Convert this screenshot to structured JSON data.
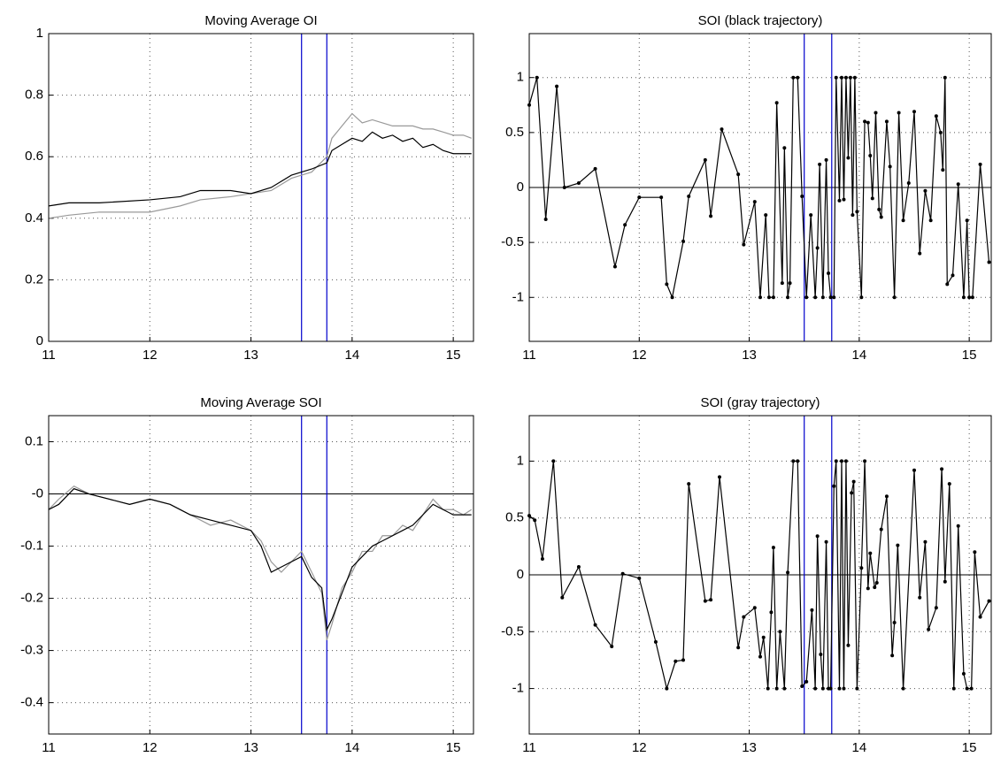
{
  "chart_data": [
    {
      "type": "line",
      "title": "Moving Average OI",
      "x": [
        11,
        11.2,
        11.5,
        12,
        12.3,
        12.5,
        12.8,
        13,
        13.2,
        13.4,
        13.5,
        13.6,
        13.75,
        13.8,
        13.9,
        14,
        14.1,
        14.2,
        14.3,
        14.4,
        14.5,
        14.6,
        14.7,
        14.8,
        14.9,
        15,
        15.1,
        15.18
      ],
      "series": [
        {
          "color": "#999999",
          "values": [
            0.4,
            0.41,
            0.42,
            0.42,
            0.44,
            0.46,
            0.47,
            0.48,
            0.49,
            0.53,
            0.54,
            0.55,
            0.6,
            0.66,
            0.7,
            0.74,
            0.71,
            0.72,
            0.71,
            0.7,
            0.7,
            0.7,
            0.69,
            0.69,
            0.68,
            0.67,
            0.67,
            0.66
          ]
        },
        {
          "color": "#000000",
          "values": [
            0.44,
            0.45,
            0.45,
            0.46,
            0.47,
            0.49,
            0.49,
            0.48,
            0.5,
            0.54,
            0.55,
            0.56,
            0.58,
            0.62,
            0.64,
            0.66,
            0.65,
            0.68,
            0.66,
            0.67,
            0.65,
            0.66,
            0.63,
            0.64,
            0.62,
            0.61,
            0.61,
            0.61
          ]
        }
      ],
      "xlim": [
        11,
        15.2
      ],
      "xticks": [
        11,
        12,
        13,
        14,
        15
      ],
      "ylim": [
        0,
        1
      ],
      "yticks": [
        0,
        0.2,
        0.4,
        0.6,
        0.8,
        1
      ],
      "grid": true,
      "vlines": [
        13.5,
        13.75
      ],
      "vline_color": "#0000cc"
    },
    {
      "type": "line",
      "title": "SOI (black trajectory)",
      "markers": true,
      "x": [
        11,
        11.07,
        11.15,
        11.25,
        11.32,
        11.45,
        11.6,
        11.78,
        11.87,
        12,
        12.2,
        12.25,
        12.3,
        12.4,
        12.45,
        12.6,
        12.65,
        12.75,
        12.9,
        12.95,
        13.05,
        13.1,
        13.15,
        13.18,
        13.22,
        13.25,
        13.3,
        13.32,
        13.35,
        13.37,
        13.4,
        13.44,
        13.48,
        13.52,
        13.56,
        13.6,
        13.62,
        13.64,
        13.67,
        13.7,
        13.72,
        13.74,
        13.77,
        13.79,
        13.82,
        13.84,
        13.86,
        13.88,
        13.9,
        13.92,
        13.94,
        13.96,
        13.98,
        14.02,
        14.05,
        14.08,
        14.1,
        14.12,
        14.15,
        14.18,
        14.2,
        14.25,
        14.28,
        14.32,
        14.36,
        14.4,
        14.45,
        14.5,
        14.55,
        14.6,
        14.65,
        14.7,
        14.74,
        14.76,
        14.78,
        14.8,
        14.85,
        14.9,
        14.95,
        14.98,
        15,
        15.03,
        15.1,
        15.18
      ],
      "series": [
        {
          "color": "#000000",
          "values": [
            0.75,
            1,
            -0.29,
            0.92,
            0,
            0.04,
            0.17,
            -0.72,
            -0.34,
            -0.09,
            -0.09,
            -0.88,
            -1,
            -0.49,
            -0.08,
            0.25,
            -0.26,
            0.53,
            0.12,
            -0.52,
            -0.13,
            -1,
            -0.25,
            -1,
            -1,
            0.77,
            -0.87,
            0.36,
            -1,
            -0.87,
            1,
            1,
            -0.08,
            -1,
            -0.25,
            -1,
            -0.55,
            0.21,
            -1,
            0.25,
            -0.78,
            -1,
            -1,
            1,
            -0.12,
            1,
            -0.11,
            1,
            0.27,
            1,
            -0.25,
            1,
            -0.22,
            -1,
            0.6,
            0.59,
            0.29,
            -0.1,
            0.68,
            -0.2,
            -0.27,
            0.6,
            0.19,
            -1,
            0.68,
            -0.3,
            0.04,
            0.69,
            -0.6,
            -0.03,
            -0.3,
            0.65,
            0.5,
            0.16,
            1,
            -0.88,
            -0.8,
            0.03,
            -1,
            -0.3,
            -1,
            -1,
            0.21,
            -0.68
          ]
        }
      ],
      "xlim": [
        11,
        15.2
      ],
      "xticks": [
        11,
        12,
        13,
        14,
        15
      ],
      "ylim": [
        -1.4,
        1.4
      ],
      "yticks": [
        -1,
        -0.5,
        0,
        0.5,
        1
      ],
      "grid": true,
      "vlines": [
        13.5,
        13.75
      ],
      "vline_color": "#0000cc",
      "hline": 0
    },
    {
      "type": "line",
      "title": "Moving Average SOI",
      "x": [
        11,
        11.1,
        11.25,
        11.4,
        11.6,
        11.8,
        12,
        12.2,
        12.4,
        12.6,
        12.8,
        13,
        13.1,
        13.2,
        13.3,
        13.4,
        13.5,
        13.6,
        13.7,
        13.75,
        13.8,
        13.9,
        14,
        14.1,
        14.2,
        14.3,
        14.4,
        14.5,
        14.6,
        14.7,
        14.8,
        14.9,
        15,
        15.1,
        15.18
      ],
      "series": [
        {
          "color": "#999999",
          "values": [
            -0.03,
            -0.01,
            0.015,
            0.0,
            -0.01,
            -0.02,
            -0.01,
            -0.02,
            -0.04,
            -0.06,
            -0.05,
            -0.07,
            -0.09,
            -0.13,
            -0.15,
            -0.13,
            -0.11,
            -0.15,
            -0.19,
            -0.28,
            -0.25,
            -0.18,
            -0.15,
            -0.11,
            -0.11,
            -0.08,
            -0.08,
            -0.06,
            -0.07,
            -0.04,
            -0.01,
            -0.03,
            -0.03,
            -0.04,
            -0.03
          ]
        },
        {
          "color": "#000000",
          "values": [
            -0.03,
            -0.02,
            0.01,
            0.0,
            -0.01,
            -0.02,
            -0.01,
            -0.02,
            -0.04,
            -0.05,
            -0.06,
            -0.07,
            -0.1,
            -0.15,
            -0.14,
            -0.13,
            -0.12,
            -0.16,
            -0.18,
            -0.26,
            -0.24,
            -0.19,
            -0.14,
            -0.12,
            -0.1,
            -0.09,
            -0.08,
            -0.07,
            -0.06,
            -0.04,
            -0.02,
            -0.03,
            -0.04,
            -0.04,
            -0.04
          ]
        }
      ],
      "xlim": [
        11,
        15.2
      ],
      "xticks": [
        11,
        12,
        13,
        14,
        15
      ],
      "ylim": [
        -0.46,
        0.15
      ],
      "yticks": [
        -0.4,
        -0.3,
        -0.2,
        -0.1,
        {
          "value": 0,
          "label": "-0"
        },
        0.1
      ],
      "grid": true,
      "vlines": [
        13.5,
        13.75
      ],
      "vline_color": "#0000cc",
      "hline": 0
    },
    {
      "type": "line",
      "title": "SOI (gray trajectory)",
      "markers": true,
      "x": [
        11,
        11.05,
        11.12,
        11.22,
        11.3,
        11.45,
        11.6,
        11.75,
        11.85,
        12,
        12.15,
        12.25,
        12.33,
        12.4,
        12.45,
        12.6,
        12.65,
        12.73,
        12.9,
        12.95,
        13.05,
        13.1,
        13.13,
        13.17,
        13.2,
        13.22,
        13.25,
        13.28,
        13.32,
        13.35,
        13.4,
        13.44,
        13.48,
        13.52,
        13.57,
        13.6,
        13.62,
        13.65,
        13.67,
        13.7,
        13.72,
        13.74,
        13.77,
        13.79,
        13.82,
        13.84,
        13.86,
        13.88,
        13.9,
        13.93,
        13.95,
        13.98,
        14.02,
        14.05,
        14.08,
        14.1,
        14.14,
        14.16,
        14.2,
        14.25,
        14.3,
        14.32,
        14.35,
        14.4,
        14.5,
        14.55,
        14.6,
        14.63,
        14.7,
        14.75,
        14.78,
        14.82,
        14.86,
        14.9,
        14.95,
        14.98,
        15.02,
        15.05,
        15.1,
        15.18
      ],
      "series": [
        {
          "color": "#000000",
          "values": [
            0.52,
            0.48,
            0.14,
            1,
            -0.2,
            0.07,
            -0.44,
            -0.63,
            0.01,
            -0.03,
            -0.59,
            -1,
            -0.76,
            -0.75,
            0.8,
            -0.23,
            -0.22,
            0.86,
            -0.64,
            -0.37,
            -0.29,
            -0.72,
            -0.55,
            -1,
            -0.33,
            0.24,
            -1,
            -0.5,
            -1,
            0.02,
            1,
            1,
            -0.98,
            -0.94,
            -0.31,
            -1,
            0.34,
            -0.7,
            -1,
            0.29,
            -1,
            -1,
            0.78,
            1,
            -1,
            1,
            -1,
            1,
            -0.62,
            0.72,
            0.82,
            -1,
            0.06,
            1,
            -0.12,
            0.19,
            -0.11,
            -0.07,
            0.4,
            0.69,
            -0.71,
            -0.42,
            0.26,
            -1,
            0.92,
            -0.2,
            0.29,
            -0.48,
            -0.29,
            0.93,
            -0.06,
            0.8,
            -1,
            0.43,
            -0.87,
            -1,
            -1,
            0.2,
            -0.37,
            -0.23
          ]
        }
      ],
      "xlim": [
        11,
        15.2
      ],
      "xticks": [
        11,
        12,
        13,
        14,
        15
      ],
      "ylim": [
        -1.4,
        1.4
      ],
      "yticks": [
        -1,
        -0.5,
        0,
        0.5,
        1
      ],
      "grid": true,
      "vlines": [
        13.5,
        13.75
      ],
      "vline_color": "#0000cc",
      "hline": 0
    }
  ]
}
